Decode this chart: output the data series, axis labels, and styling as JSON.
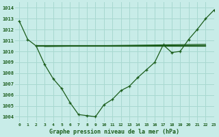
{
  "title": "Graphe pression niveau de la mer (hPa)",
  "bg_color": "#c8ece8",
  "grid_color": "#a8d8d0",
  "line_color": "#1a5c1a",
  "xlim": [
    -0.5,
    23
  ],
  "ylim": [
    1003.5,
    1014.5
  ],
  "yticks": [
    1004,
    1005,
    1006,
    1007,
    1008,
    1009,
    1010,
    1011,
    1012,
    1013,
    1014
  ],
  "xticks": [
    0,
    1,
    2,
    3,
    4,
    5,
    6,
    7,
    8,
    9,
    10,
    11,
    12,
    13,
    14,
    15,
    16,
    17,
    18,
    19,
    20,
    21,
    22,
    23
  ],
  "series1_x": [
    0,
    1,
    2,
    3,
    4,
    5,
    6,
    7,
    8,
    9,
    10,
    11,
    12,
    13,
    14,
    15,
    16,
    17,
    18,
    19,
    20,
    21,
    22,
    23
  ],
  "series1_y": [
    1012.8,
    1011.1,
    1010.5,
    1008.8,
    1007.5,
    1006.6,
    1005.3,
    1004.2,
    1004.1,
    1004.0,
    1005.1,
    1005.6,
    1006.4,
    1006.8,
    1007.6,
    1008.3,
    1009.0,
    1010.6,
    1009.9,
    1010.0,
    1011.1,
    1012.0,
    1013.0,
    1013.8
  ],
  "ref_lines": [
    {
      "x0": 2,
      "y0": 1010.5,
      "x1": 22,
      "y1": 1010.5
    },
    {
      "x0": 2,
      "y0": 1010.55,
      "x1": 22,
      "y1": 1010.55
    },
    {
      "x0": 3,
      "y0": 1010.45,
      "x1": 22,
      "y1": 1010.65
    }
  ]
}
